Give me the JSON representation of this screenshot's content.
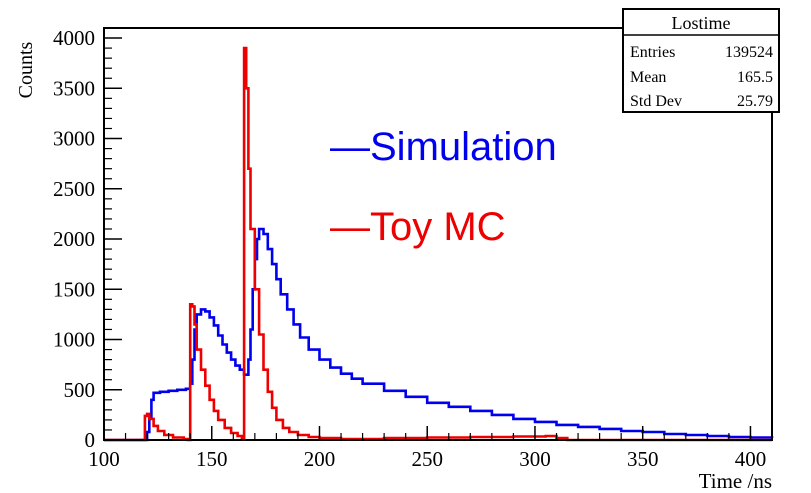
{
  "chart_data": {
    "type": "histogram",
    "ylabel": "Counts",
    "xlabel": "Time /ns",
    "xlim": [
      100,
      410
    ],
    "ylim": [
      0,
      4100
    ],
    "x_ticks": [
      100,
      150,
      200,
      250,
      300,
      350,
      400
    ],
    "y_ticks": [
      0,
      500,
      1000,
      1500,
      2000,
      2500,
      3000,
      3500,
      4000
    ],
    "stats_box": {
      "title": "Lostime",
      "rows": [
        {
          "label": "Entries",
          "value": "139524"
        },
        {
          "label": "Mean",
          "value": "165.5"
        },
        {
          "label": "Std Dev",
          "value": "25.79"
        }
      ]
    },
    "legend": {
      "placement": "upper-middle",
      "entries": [
        {
          "name": "Simulation",
          "marker": "—",
          "color": "#0000ee"
        },
        {
          "name": "Toy MC",
          "marker": "—",
          "color": "#ee0000"
        }
      ]
    },
    "series": [
      {
        "name": "Simulation",
        "color": "#0000ee",
        "points": [
          [
            100,
            0
          ],
          [
            118,
            0
          ],
          [
            120,
            80
          ],
          [
            121,
            230
          ],
          [
            122,
            400
          ],
          [
            123,
            470
          ],
          [
            126,
            480
          ],
          [
            130,
            490
          ],
          [
            134,
            500
          ],
          [
            138,
            510
          ],
          [
            140,
            560
          ],
          [
            141,
            800
          ],
          [
            142,
            1100
          ],
          [
            143,
            1250
          ],
          [
            145,
            1300
          ],
          [
            147,
            1280
          ],
          [
            149,
            1220
          ],
          [
            151,
            1140
          ],
          [
            153,
            1040
          ],
          [
            155,
            950
          ],
          [
            157,
            870
          ],
          [
            159,
            800
          ],
          [
            161,
            740
          ],
          [
            163,
            700
          ],
          [
            165,
            650
          ],
          [
            167,
            800
          ],
          [
            168,
            1100
          ],
          [
            169,
            1500
          ],
          [
            170,
            1800
          ],
          [
            171,
            2000
          ],
          [
            172,
            2100
          ],
          [
            174,
            2050
          ],
          [
            176,
            1900
          ],
          [
            178,
            1750
          ],
          [
            180,
            1600
          ],
          [
            182,
            1450
          ],
          [
            185,
            1300
          ],
          [
            188,
            1150
          ],
          [
            191,
            1020
          ],
          [
            195,
            900
          ],
          [
            200,
            800
          ],
          [
            205,
            720
          ],
          [
            210,
            660
          ],
          [
            215,
            610
          ],
          [
            220,
            560
          ],
          [
            230,
            490
          ],
          [
            240,
            430
          ],
          [
            250,
            370
          ],
          [
            260,
            330
          ],
          [
            270,
            290
          ],
          [
            280,
            250
          ],
          [
            290,
            210
          ],
          [
            300,
            180
          ],
          [
            310,
            150
          ],
          [
            320,
            130
          ],
          [
            330,
            110
          ],
          [
            340,
            90
          ],
          [
            350,
            80
          ],
          [
            360,
            60
          ],
          [
            370,
            50
          ],
          [
            380,
            40
          ],
          [
            390,
            30
          ],
          [
            400,
            25
          ],
          [
            410,
            20
          ]
        ]
      },
      {
        "name": "Toy MC",
        "color": "#ee0000",
        "points": [
          [
            100,
            0
          ],
          [
            118,
            0
          ],
          [
            119,
            240
          ],
          [
            120,
            260
          ],
          [
            121,
            210
          ],
          [
            123,
            140
          ],
          [
            125,
            90
          ],
          [
            128,
            50
          ],
          [
            132,
            25
          ],
          [
            137,
            10
          ],
          [
            139,
            0
          ],
          [
            140,
            1350
          ],
          [
            141,
            1330
          ],
          [
            142,
            1150
          ],
          [
            143,
            900
          ],
          [
            145,
            700
          ],
          [
            147,
            540
          ],
          [
            149,
            400
          ],
          [
            151,
            290
          ],
          [
            153,
            200
          ],
          [
            156,
            120
          ],
          [
            159,
            70
          ],
          [
            162,
            40
          ],
          [
            164,
            20
          ],
          [
            165,
            3900
          ],
          [
            166,
            3500
          ],
          [
            167,
            2700
          ],
          [
            168,
            2100
          ],
          [
            170,
            1500
          ],
          [
            172,
            1050
          ],
          [
            174,
            700
          ],
          [
            176,
            480
          ],
          [
            178,
            320
          ],
          [
            180,
            200
          ],
          [
            183,
            120
          ],
          [
            186,
            80
          ],
          [
            190,
            50
          ],
          [
            195,
            30
          ],
          [
            200,
            20
          ],
          [
            210,
            10
          ],
          [
            230,
            20
          ],
          [
            250,
            25
          ],
          [
            270,
            30
          ],
          [
            290,
            35
          ],
          [
            305,
            40
          ],
          [
            310,
            20
          ],
          [
            315,
            0
          ],
          [
            410,
            0
          ]
        ]
      }
    ]
  }
}
